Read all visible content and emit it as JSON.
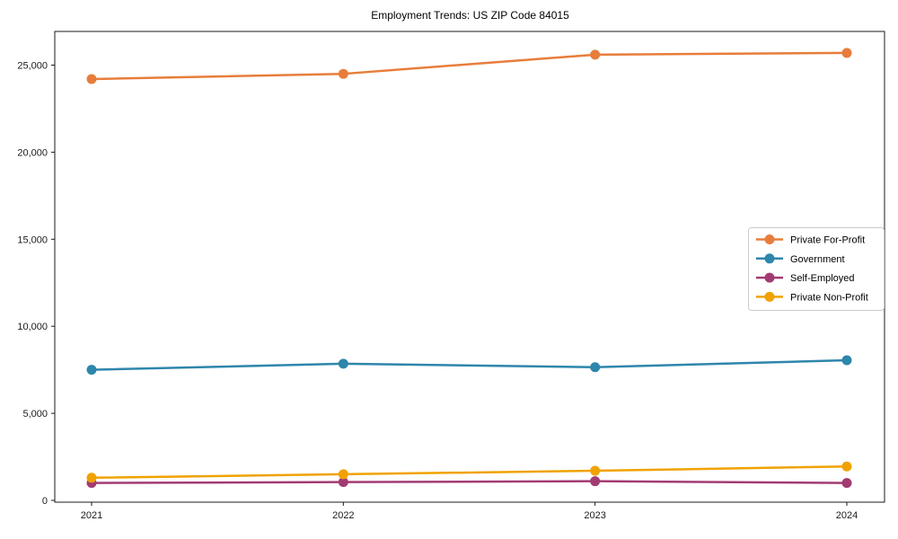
{
  "chart_data": {
    "type": "line",
    "title": "Employment Trends: US ZIP Code 84015",
    "x": [
      "2021",
      "2022",
      "2023",
      "2024"
    ],
    "xlabel": "",
    "ylabel": "",
    "ylim": [
      0,
      27000
    ],
    "yticks": [
      0,
      5000,
      10000,
      15000,
      20000,
      25000
    ],
    "ytick_labels": [
      "0",
      "5,000",
      "10,000",
      "15,000",
      "20,000",
      "25,000"
    ],
    "grid": false,
    "axis_color": "#1a1a1a",
    "background_color": "#ffffff",
    "legend": {
      "position": "center-right",
      "background": "#ffffff",
      "border_color": "#cccccc",
      "entries": [
        "Private For-Profit",
        "Government",
        "Self-Employed",
        "Private Non-Profit"
      ]
    },
    "series": [
      {
        "name": "Private For-Profit",
        "color": "#E87D3B",
        "values": [
          24200,
          24500,
          25600,
          25700
        ]
      },
      {
        "name": "Government",
        "color": "#2E86AB",
        "values": [
          7500,
          7850,
          7650,
          8050
        ]
      },
      {
        "name": "Self-Employed",
        "color": "#A23B72",
        "values": [
          1000,
          1050,
          1100,
          1000
        ]
      },
      {
        "name": "Private Non-Profit",
        "color": "#F0A202",
        "values": [
          1300,
          1500,
          1700,
          1950
        ]
      }
    ]
  }
}
